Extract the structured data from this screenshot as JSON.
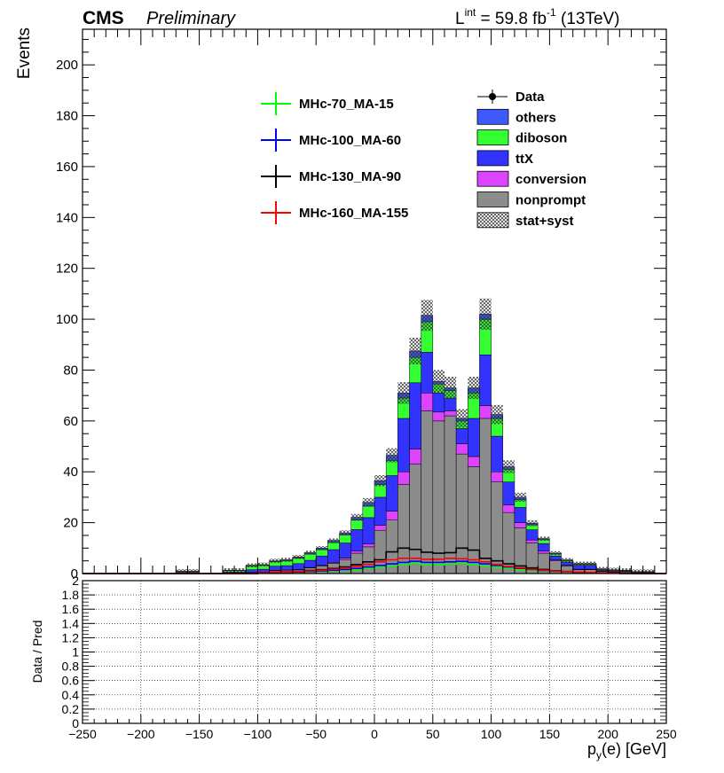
{
  "header": {
    "experiment": "CMS",
    "status": "Preliminary",
    "lumi_prefix": "L",
    "lumi_sup": "int",
    "lumi_value": " = 59.8 fb",
    "lumi_exp": "-1",
    "energy": " (13TeV)"
  },
  "legend": {
    "signals": [
      {
        "label": "MHc-70_MA-15",
        "color": "#00ff00"
      },
      {
        "label": "MHc-100_MA-60",
        "color": "#0000ff"
      },
      {
        "label": "MHc-130_MA-90",
        "color": "#000000"
      },
      {
        "label": "MHc-160_MA-155",
        "color": "#ff0000"
      }
    ],
    "backgrounds": [
      {
        "label": "Data",
        "kind": "marker"
      },
      {
        "label": "others",
        "color": "#3d5afe",
        "kind": "fill"
      },
      {
        "label": "diboson",
        "color": "#33ff33",
        "kind": "fill"
      },
      {
        "label": "ttX",
        "color": "#3333ff",
        "kind": "fill"
      },
      {
        "label": "conversion",
        "color": "#dd44ff",
        "kind": "fill"
      },
      {
        "label": "nonprompt",
        "color": "#8c8c8c",
        "kind": "fill"
      },
      {
        "label": "stat+syst",
        "kind": "hatch"
      }
    ]
  },
  "chart_data": [
    {
      "type": "bar",
      "stacked": true,
      "xlabel_main": "p",
      "xlabel_sub": "y",
      "xlabel_rest": "(e) [GeV]",
      "ylabel": "Events",
      "xlim": [
        -250,
        250
      ],
      "ylim": [
        0,
        214
      ],
      "x_ticks": [
        -250,
        -200,
        -150,
        -100,
        -50,
        0,
        50,
        100,
        150,
        200,
        250
      ],
      "x_tick_labels": [
        "−250",
        "−200",
        "−150",
        "−100",
        "−50",
        "0",
        "50",
        "100",
        "150",
        "200",
        "250"
      ],
      "y_ticks": [
        0,
        20,
        40,
        60,
        80,
        100,
        120,
        140,
        160,
        180,
        200
      ],
      "bin_width": 10,
      "bin_edges_start": -250,
      "series": [
        {
          "name": "nonprompt",
          "color": "#8c8c8c",
          "values": [
            0,
            0,
            0,
            0,
            0,
            0,
            0,
            0,
            0.2,
            0.2,
            0,
            0,
            0.3,
            0.3,
            0.5,
            0.5,
            1.2,
            1.3,
            1.5,
            2.2,
            3,
            4,
            5.5,
            8,
            10.5,
            17,
            21,
            35,
            43,
            64,
            60,
            62,
            47,
            42,
            61,
            36,
            24,
            18,
            12,
            8,
            5,
            3,
            1.5,
            1.5,
            0.8,
            0.6,
            0.6,
            0.3,
            0.3,
            0,
            0
          ]
        },
        {
          "name": "conversion",
          "color": "#dd44ff",
          "values": [
            0,
            0,
            0,
            0,
            0,
            0,
            0,
            0,
            0,
            0,
            0,
            0,
            0,
            0,
            0,
            0,
            0.1,
            0.1,
            0.1,
            0.2,
            0.3,
            0.4,
            0.6,
            0.8,
            1.2,
            2,
            3.5,
            5,
            6,
            7,
            3.5,
            2,
            4,
            4,
            5,
            4,
            3,
            2,
            1.2,
            0.8,
            0.4,
            0.3,
            0.2,
            0.2,
            0.1,
            0.1,
            0.1,
            0,
            0,
            0,
            0
          ]
        },
        {
          "name": "ttX",
          "color": "#3333ff",
          "values": [
            0,
            0,
            0,
            0,
            0,
            0,
            0,
            0,
            0.3,
            0.3,
            0,
            0,
            0.3,
            0.3,
            1,
            1.2,
            1.6,
            1.7,
            2.3,
            2.8,
            3.6,
            5,
            5.9,
            8.5,
            10.3,
            11,
            14,
            21,
            26,
            16,
            7.5,
            5,
            6,
            15,
            20,
            14,
            9,
            6,
            4,
            3,
            1.5,
            1.2,
            1.5,
            1.5,
            0.5,
            0.4,
            0.3,
            0.2,
            0.2,
            0,
            0
          ]
        },
        {
          "name": "diboson",
          "color": "#33ff33",
          "values": [
            0,
            0,
            0,
            0,
            0,
            0,
            0,
            0,
            0.3,
            0.3,
            0.2,
            0.2,
            0.6,
            0.6,
            1.5,
            1.6,
            1.8,
            2,
            2.2,
            2.5,
            2.5,
            2.8,
            3.2,
            3.8,
            4.5,
            5,
            6,
            8,
            10,
            12,
            3.5,
            3,
            3,
            10,
            14,
            7,
            5,
            3,
            2,
            1.5,
            0.8,
            0.6,
            0.5,
            0.5,
            0.3,
            0.3,
            0.2,
            0.2,
            0.2,
            0,
            0
          ]
        },
        {
          "name": "others",
          "color": "#3d5afe",
          "values": [
            0,
            0,
            0,
            0,
            0,
            0,
            0,
            0,
            0.1,
            0.1,
            0,
            0,
            0.1,
            0.1,
            0.2,
            0.2,
            0.3,
            0.3,
            0.4,
            0.5,
            0.6,
            0.8,
            0.8,
            1,
            1.5,
            1.5,
            2,
            2,
            2.5,
            2.5,
            1,
            1,
            1,
            2,
            2,
            1.5,
            1,
            1,
            0.6,
            0.4,
            0.3,
            0.2,
            0.2,
            0.2,
            0.1,
            0.1,
            0.1,
            0.1,
            0.1,
            0,
            0
          ]
        }
      ],
      "signals": [
        {
          "name": "MHc-70_MA-15",
          "color": "#00ff00",
          "values": [
            0,
            0,
            0,
            0,
            0,
            0,
            0,
            0,
            0,
            0,
            0,
            0,
            0,
            0,
            0,
            0.2,
            0.3,
            0.4,
            0.5,
            0.6,
            0.8,
            1,
            1.2,
            1.5,
            2,
            2.5,
            3,
            3.5,
            4,
            3.5,
            3.5,
            3.8,
            4,
            3.5,
            3,
            2.5,
            2,
            1.5,
            1.2,
            1,
            0.8,
            0.6,
            0.4,
            0.3,
            0.2,
            0.1,
            0,
            0,
            0,
            0
          ]
        },
        {
          "name": "MHc-100_MA-60",
          "color": "#0000ff",
          "values": [
            0,
            0,
            0,
            0,
            0,
            0,
            0,
            0,
            0,
            0,
            0,
            0,
            0,
            0,
            0,
            0.3,
            0.4,
            0.5,
            0.6,
            0.8,
            1,
            1.3,
            1.6,
            2,
            2.6,
            3.2,
            3.8,
            4.4,
            4.8,
            4.4,
            4.4,
            4.6,
            4.8,
            4.4,
            3.8,
            3.2,
            2.6,
            2,
            1.6,
            1.2,
            0.9,
            0.7,
            0.5,
            0.3,
            0.2,
            0.1,
            0,
            0,
            0,
            0
          ]
        },
        {
          "name": "MHc-130_MA-90",
          "color": "#000000",
          "values": [
            0,
            0,
            0,
            0,
            0,
            0,
            0,
            0,
            0,
            0,
            0,
            0,
            0,
            0,
            0,
            0.4,
            0.6,
            0.7,
            0.9,
            1.2,
            1.5,
            2,
            2.6,
            3.5,
            4.6,
            5.4,
            8.5,
            10,
            9.5,
            8.4,
            8,
            8.2,
            10,
            9.2,
            6,
            5,
            3.8,
            3,
            2.2,
            1.6,
            1.1,
            0.8,
            0.6,
            0.4,
            0.3,
            0.2,
            0.1,
            0,
            0,
            0
          ]
        },
        {
          "name": "MHc-160_MA-155",
          "color": "#ff0000",
          "values": [
            0,
            0,
            0,
            0,
            0,
            0,
            0,
            0,
            0,
            0,
            0,
            0,
            0,
            0,
            0,
            0.3,
            0.5,
            0.6,
            0.8,
            1,
            1.3,
            1.7,
            2.2,
            2.8,
            3.6,
            4.6,
            5.4,
            6,
            6,
            5.6,
            5.6,
            6,
            5.8,
            5.4,
            4.6,
            3.6,
            2.8,
            2.2,
            1.7,
            1.3,
            1,
            0.8,
            0.6,
            0.4,
            0.3,
            0.2,
            0.1,
            0,
            0,
            0
          ]
        }
      ]
    },
    {
      "type": "line",
      "ylabel": "Data / Pred",
      "xlim": [
        -250,
        250
      ],
      "ylim": [
        0,
        2
      ],
      "x_ticks": [
        -250,
        -200,
        -150,
        -100,
        -50,
        0,
        50,
        100,
        150,
        200,
        250
      ],
      "y_ticks": [
        0,
        0.2,
        0.4,
        0.6,
        0.8,
        1,
        1.2,
        1.4,
        1.6,
        1.8,
        2
      ],
      "y_tick_labels": [
        "0",
        "0.2",
        "0.4",
        "0.6",
        "0.8",
        "1",
        "1.2",
        "1.4",
        "1.6",
        "1.8",
        "2"
      ],
      "grid": true,
      "values": []
    }
  ]
}
